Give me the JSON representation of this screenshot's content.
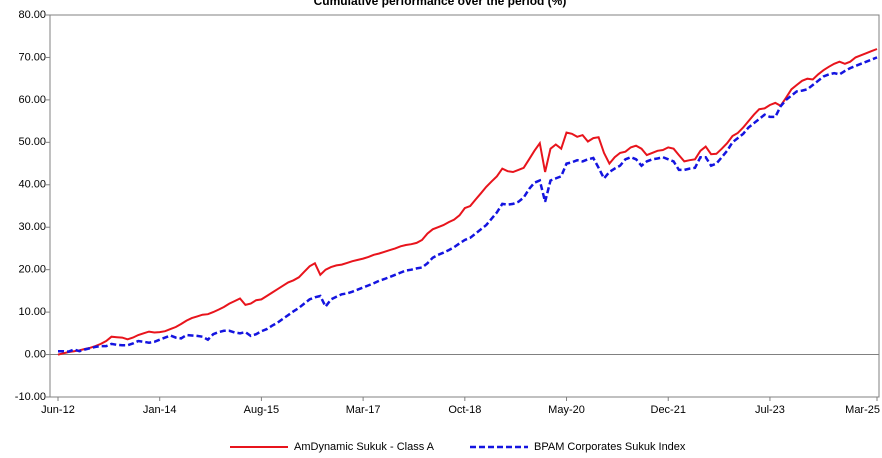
{
  "chart_data": {
    "type": "line",
    "title": "Cumulative performance over the period (%)",
    "categories": [
      "Jun-12",
      null,
      null,
      null,
      null,
      null,
      null,
      null,
      null,
      null,
      null,
      null,
      null,
      null,
      null,
      null,
      null,
      null,
      null,
      "Jan-14",
      null,
      null,
      null,
      null,
      null,
      null,
      null,
      null,
      null,
      null,
      null,
      null,
      null,
      null,
      null,
      null,
      null,
      null,
      "Aug-15",
      null,
      null,
      null,
      null,
      null,
      null,
      null,
      null,
      null,
      null,
      null,
      null,
      null,
      null,
      null,
      null,
      null,
      null,
      "Mar-17",
      null,
      null,
      null,
      null,
      null,
      null,
      null,
      null,
      null,
      null,
      null,
      null,
      null,
      null,
      null,
      null,
      null,
      null,
      "Oct-18",
      null,
      null,
      null,
      null,
      null,
      null,
      null,
      null,
      null,
      null,
      null,
      null,
      null,
      null,
      null,
      null,
      null,
      null,
      "May-20",
      null,
      null,
      null,
      null,
      null,
      null,
      null,
      null,
      null,
      null,
      null,
      null,
      null,
      null,
      null,
      null,
      null,
      null,
      "Dec-21",
      null,
      null,
      null,
      null,
      null,
      null,
      null,
      null,
      null,
      null,
      null,
      null,
      null,
      null,
      null,
      null,
      null,
      null,
      "Jul-23",
      null,
      null,
      null,
      null,
      null,
      null,
      null,
      null,
      null,
      null,
      null,
      null,
      null,
      null,
      null,
      null,
      null,
      null,
      null,
      "Mar-25"
    ],
    "series": [
      {
        "name": "AmDynamic Sukuk - Class A",
        "color": "#e8141c",
        "dash": false,
        "values": [
          0,
          0.3,
          0.6,
          0.8,
          1.0,
          1.3,
          1.6,
          2.0,
          2.5,
          3.2,
          4.2,
          4.1,
          4.0,
          3.6,
          4.0,
          4.6,
          5.0,
          5.4,
          5.2,
          5.3,
          5.5,
          6.0,
          6.5,
          7.2,
          8.0,
          8.6,
          9.0,
          9.4,
          9.5,
          10.0,
          10.6,
          11.2,
          12.0,
          12.6,
          13.2,
          11.7,
          12.0,
          12.8,
          13.0,
          13.8,
          14.6,
          15.4,
          16.2,
          17.0,
          17.5,
          18.2,
          19.5,
          20.8,
          21.5,
          18.8,
          20.0,
          20.6,
          21.0,
          21.2,
          21.6,
          22.0,
          22.3,
          22.6,
          23.0,
          23.5,
          23.8,
          24.2,
          24.6,
          25.0,
          25.5,
          25.8,
          26.0,
          26.3,
          27.0,
          28.5,
          29.5,
          30.0,
          30.5,
          31.2,
          31.8,
          32.8,
          34.5,
          35.0,
          36.5,
          38.0,
          39.5,
          40.8,
          42.0,
          43.8,
          43.2,
          43.0,
          43.5,
          44.0,
          46.0,
          48.0,
          49.8,
          43.0,
          48.5,
          49.5,
          48.5,
          52.3,
          52.0,
          51.3,
          51.7,
          50.2,
          51.0,
          51.2,
          47.5,
          45.0,
          46.5,
          47.5,
          47.8,
          48.8,
          49.2,
          48.5,
          47.0,
          47.5,
          48.0,
          48.2,
          48.8,
          48.5,
          47.0,
          45.5,
          45.8,
          46.0,
          48.0,
          49.0,
          47.2,
          47.3,
          48.5,
          49.8,
          51.5,
          52.2,
          53.5,
          55.0,
          56.5,
          57.8,
          58.0,
          58.8,
          59.3,
          58.6,
          60.5,
          62.5,
          63.5,
          64.5,
          65.0,
          64.8,
          66.0,
          67.0,
          67.8,
          68.5,
          69.0,
          68.5,
          69.0,
          70.0,
          70.5,
          71.0,
          71.5,
          72.0
        ]
      },
      {
        "name": "BPAM Corporates Sukuk Index",
        "color": "#1414e0",
        "dash": true,
        "values": [
          0.8,
          0.8,
          0.7,
          1.2,
          0.8,
          1.2,
          1.5,
          1.8,
          2.0,
          2.0,
          2.5,
          2.3,
          2.2,
          2.2,
          2.6,
          3.2,
          3.0,
          2.8,
          3.0,
          3.5,
          4.0,
          4.5,
          4.0,
          3.8,
          4.6,
          4.5,
          4.4,
          4.2,
          3.5,
          4.8,
          5.3,
          5.6,
          5.6,
          5.2,
          5.0,
          5.3,
          4.4,
          4.8,
          5.5,
          6.0,
          6.8,
          7.5,
          8.4,
          9.3,
          10.2,
          11.0,
          12.0,
          13.0,
          13.5,
          13.8,
          11.3,
          13.0,
          13.6,
          14.2,
          14.4,
          14.8,
          15.3,
          15.8,
          16.3,
          16.8,
          17.4,
          17.8,
          18.3,
          18.8,
          19.3,
          19.8,
          20.0,
          20.3,
          20.5,
          21.5,
          22.8,
          23.5,
          24.0,
          24.6,
          25.3,
          26.2,
          27.0,
          27.5,
          28.5,
          29.5,
          30.5,
          32.0,
          33.5,
          35.5,
          35.3,
          35.5,
          36.0,
          37.0,
          39.0,
          40.5,
          41.0,
          36.0,
          41.0,
          41.5,
          42.0,
          45.0,
          45.3,
          45.8,
          45.5,
          46.0,
          46.3,
          44.0,
          41.5,
          43.0,
          43.8,
          44.5,
          46.0,
          46.5,
          46.0,
          44.5,
          45.5,
          46.0,
          46.2,
          46.5,
          46.0,
          45.5,
          43.5,
          43.5,
          43.8,
          44.0,
          46.5,
          46.5,
          44.5,
          45.0,
          46.5,
          48.0,
          50.0,
          51.0,
          52.0,
          53.5,
          54.5,
          55.5,
          56.5,
          56.0,
          56.0,
          58.5,
          60.0,
          61.0,
          62.0,
          62.2,
          62.5,
          63.5,
          64.5,
          65.5,
          66.0,
          66.3,
          66.0,
          66.8,
          67.5,
          68.0,
          68.5,
          69.0,
          69.5,
          70.0
        ]
      }
    ],
    "ylim": [
      -10,
      80
    ],
    "yticks": [
      {
        "value": -10,
        "label": "-10.00"
      },
      {
        "value": 0,
        "label": "0.00"
      },
      {
        "value": 10,
        "label": "10.00"
      },
      {
        "value": 20,
        "label": "20.00"
      },
      {
        "value": 30,
        "label": "30.00"
      },
      {
        "value": 40,
        "label": "40.00"
      },
      {
        "value": 50,
        "label": "50.00"
      },
      {
        "value": 60,
        "label": "60.00"
      },
      {
        "value": 70,
        "label": "70.00"
      },
      {
        "value": 80,
        "label": "80.00"
      }
    ],
    "legend": "bottom"
  }
}
